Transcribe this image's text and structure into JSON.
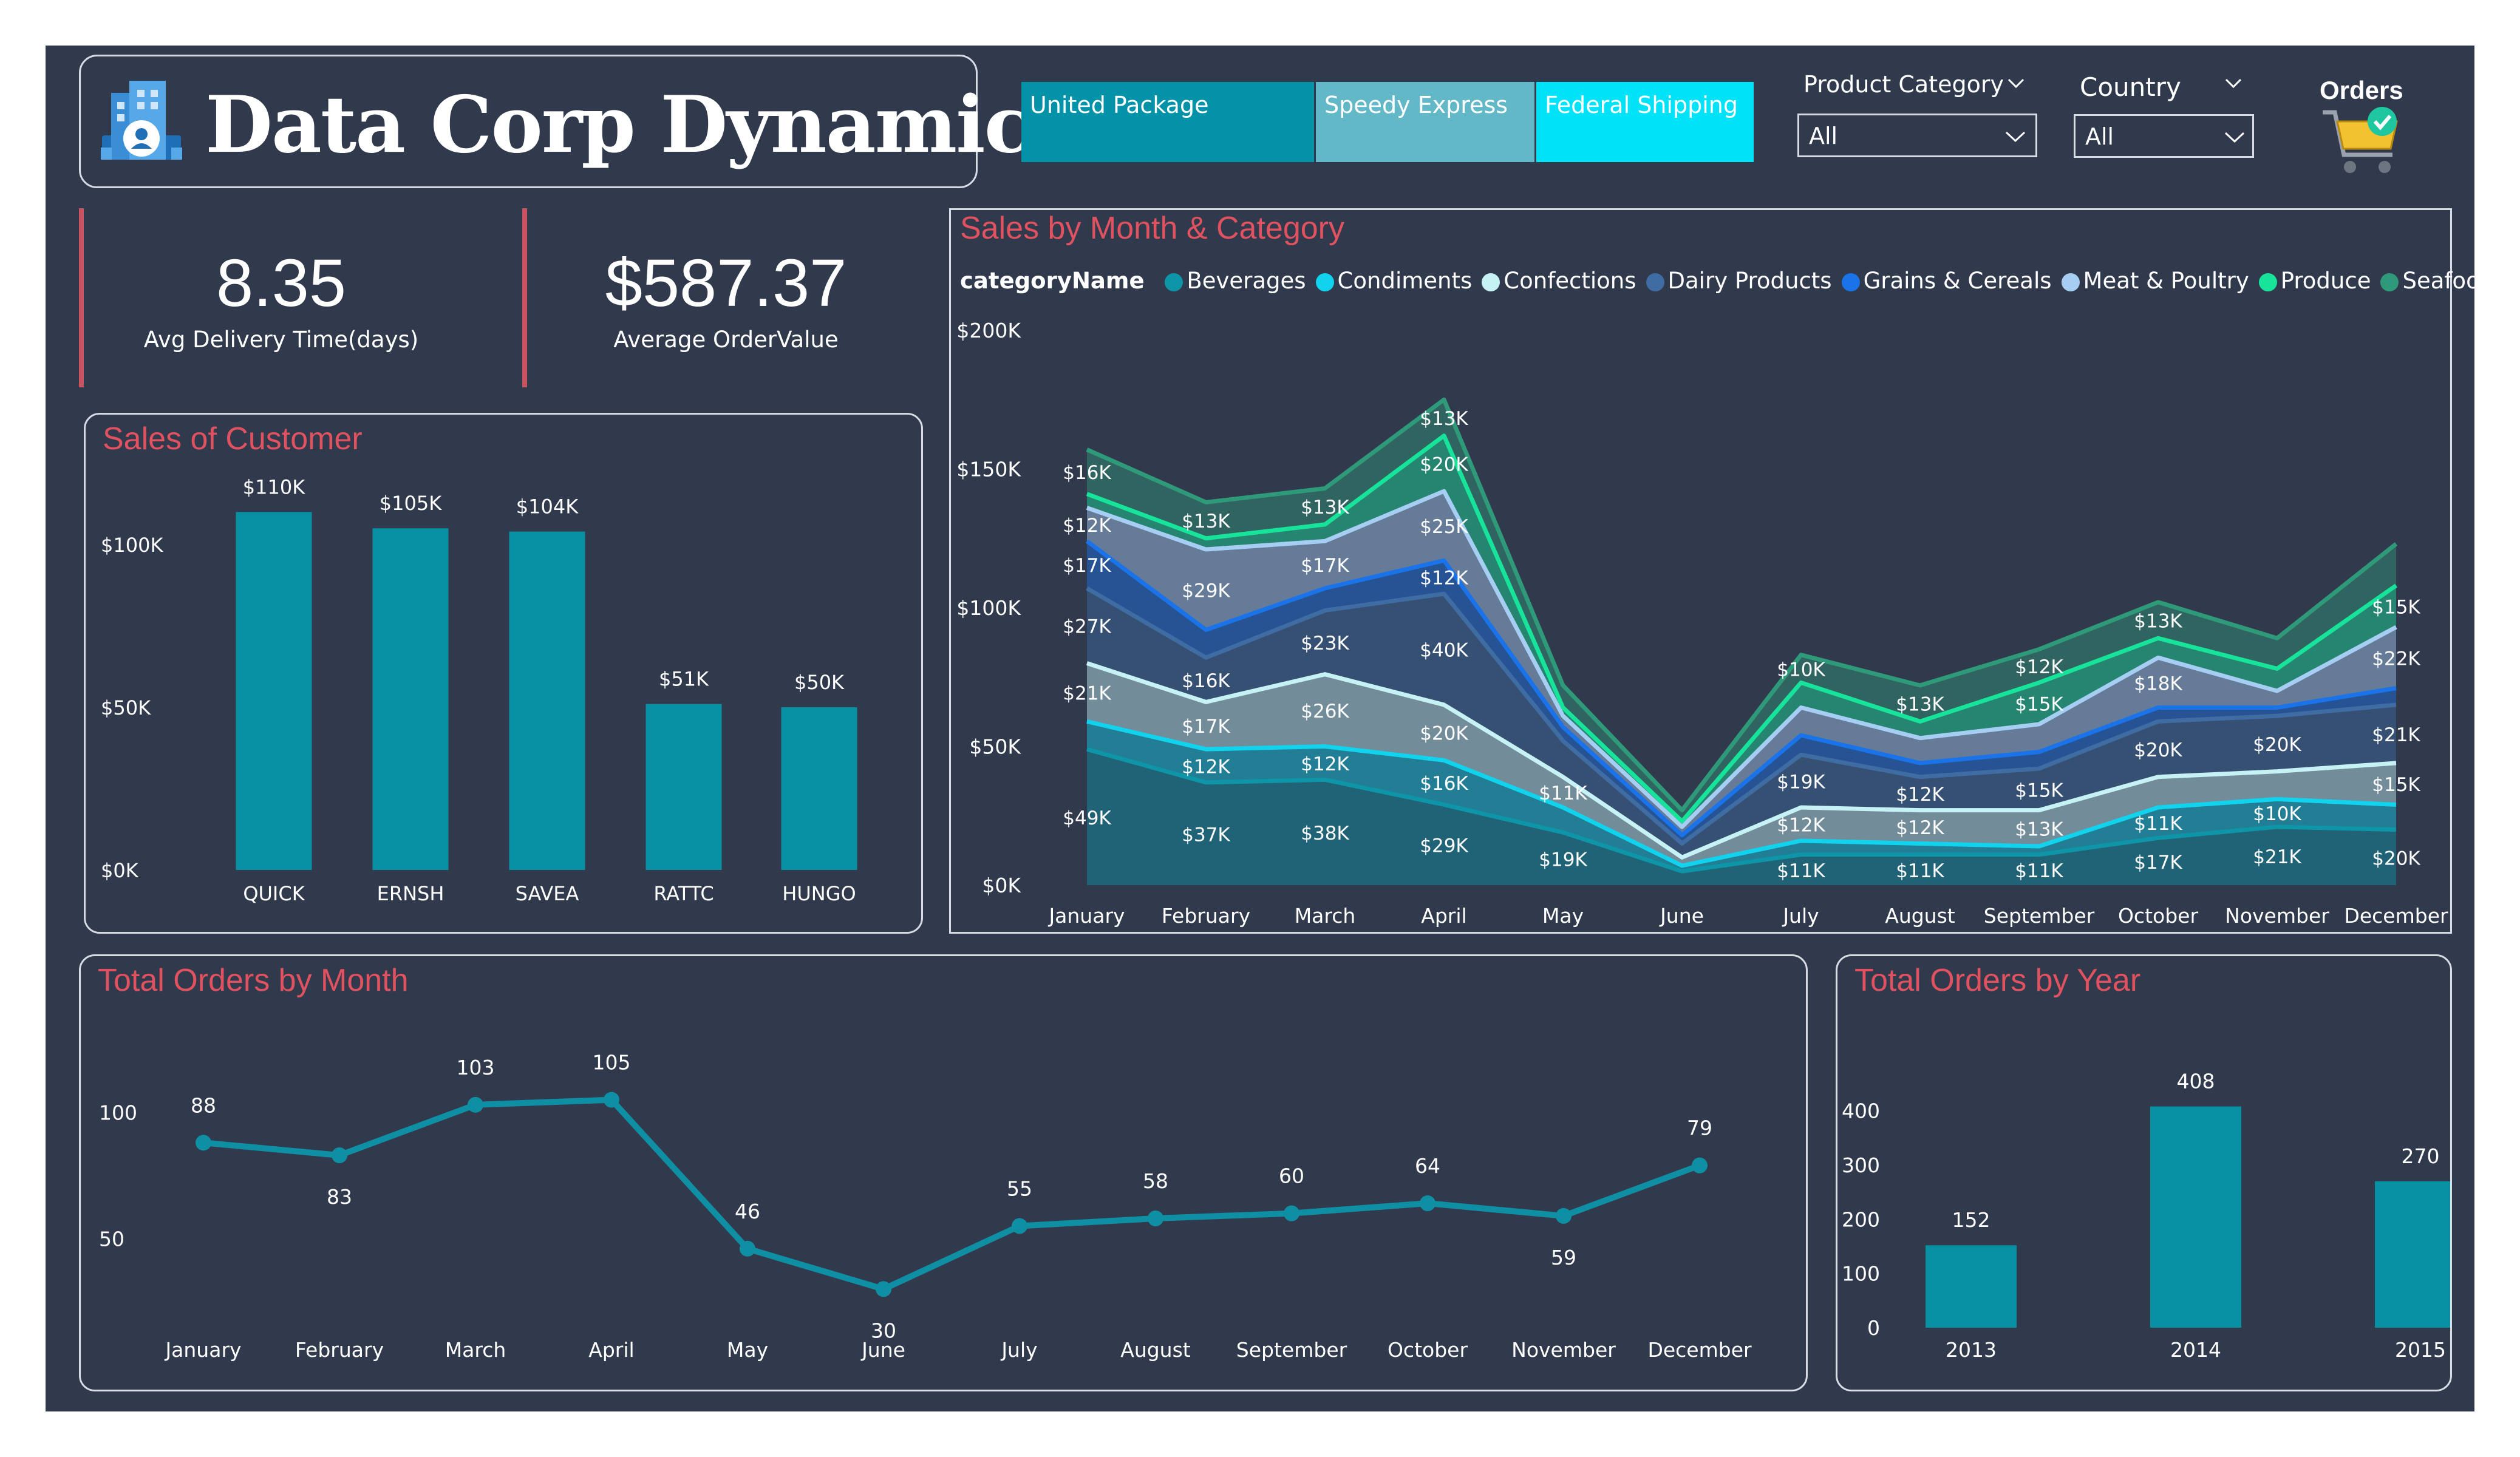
{
  "header": {
    "title": "Data Corp Dynamics",
    "orders_label": "Orders"
  },
  "shippers": [
    {
      "name": "United Package",
      "color": "#0492a8"
    },
    {
      "name": "Speedy Express",
      "color": "#62b8c7"
    },
    {
      "name": "Federal Shipping",
      "color": "#00e2f8"
    }
  ],
  "filters": {
    "product_category": {
      "label": "Product Category",
      "value": "All"
    },
    "country": {
      "label": "Country",
      "value": "All"
    }
  },
  "kpis": [
    {
      "value": "8.35",
      "label": "Avg Delivery Time(days)"
    },
    {
      "value": "$587.37",
      "label": "Average OrderValue"
    }
  ],
  "colors": {
    "bar": "#078fa2",
    "line": "#0f8fa3",
    "title": "#e05260",
    "background": "#313a4d"
  },
  "chart_data": [
    {
      "id": "sales_customer",
      "type": "bar",
      "title": "Sales of Customer",
      "categories": [
        "QUICK",
        "ERNSH",
        "SAVEA",
        "RATTC",
        "HUNGO"
      ],
      "values": [
        110,
        105,
        104,
        51,
        50
      ],
      "data_labels": [
        "$110K",
        "$105K",
        "$104K",
        "$51K",
        "$50K"
      ],
      "ylim": [
        0,
        125
      ],
      "yticks": [
        0,
        50,
        100
      ],
      "ytick_labels": [
        "$0K",
        "$50K",
        "$100K"
      ]
    },
    {
      "id": "sales_month_category",
      "type": "area",
      "stacked": true,
      "title": "Sales by Month & Category",
      "legend_title": "categoryName",
      "categories": [
        "January",
        "February",
        "March",
        "April",
        "May",
        "June",
        "July",
        "August",
        "September",
        "October",
        "November",
        "December"
      ],
      "ylim": [
        0,
        200
      ],
      "yticks": [
        0,
        50,
        100,
        150,
        200
      ],
      "ytick_labels": [
        "$0K",
        "$50K",
        "$100K",
        "$150K",
        "$200K"
      ],
      "series": [
        {
          "name": "Beverages",
          "color": "#0e95a8",
          "values": [
            49,
            37,
            38,
            29,
            19,
            5,
            11,
            11,
            11,
            17,
            21,
            20
          ],
          "labels": [
            "$49K",
            "$37K",
            "$38K",
            "$29K",
            "$19K",
            "",
            "$11K",
            "$11K",
            "$11K",
            "$17K",
            "$21K",
            "$20K"
          ]
        },
        {
          "name": "Condiments",
          "color": "#12d3ee",
          "values": [
            10,
            12,
            12,
            16,
            9,
            2,
            5,
            4,
            3,
            11,
            10,
            9
          ],
          "labels": [
            "",
            "$12K",
            "$12K",
            "$16K",
            "",
            "",
            "",
            "",
            "",
            "$11K",
            "$10K",
            ""
          ]
        },
        {
          "name": "Confections",
          "color": "#c6f2f6",
          "values": [
            21,
            17,
            26,
            20,
            11,
            3,
            12,
            12,
            13,
            11,
            10,
            15
          ],
          "labels": [
            "$21K",
            "$17K",
            "$26K",
            "$20K",
            "$11K",
            "",
            "$12K",
            "$12K",
            "$13K",
            "",
            "",
            "$15K"
          ]
        },
        {
          "name": "Dairy Products",
          "color": "#3e6ca3",
          "values": [
            27,
            16,
            23,
            40,
            13,
            5,
            19,
            12,
            15,
            20,
            20,
            21
          ],
          "labels": [
            "$27K",
            "$16K",
            "$23K",
            "$40K",
            "",
            "",
            "$19K",
            "$12K",
            "$15K",
            "$20K",
            "$20K",
            "$21K"
          ]
        },
        {
          "name": "Grains & Cereals",
          "color": "#1a73e8",
          "values": [
            17,
            10,
            8,
            12,
            5,
            3,
            7,
            5,
            6,
            5,
            3,
            6
          ],
          "labels": [
            "$17K",
            "",
            "",
            "$12K",
            "",
            "",
            "",
            "",
            "",
            "",
            "",
            ""
          ]
        },
        {
          "name": "Meat & Poultry",
          "color": "#a6cdf2",
          "values": [
            12,
            29,
            17,
            25,
            4,
            3,
            10,
            9,
            10,
            18,
            6,
            22
          ],
          "labels": [
            "$12K",
            "$29K",
            "$17K",
            "$25K",
            "",
            "",
            "",
            "",
            "",
            "$18K",
            "",
            "$22K"
          ]
        },
        {
          "name": "Produce",
          "color": "#18e39b",
          "values": [
            5,
            4,
            6,
            20,
            3,
            2,
            9,
            6,
            15,
            7,
            8,
            15
          ],
          "labels": [
            "",
            "",
            "",
            "$20K",
            "",
            "",
            "",
            "",
            "$15K",
            "",
            "",
            "$15K"
          ]
        },
        {
          "name": "Seafood",
          "color": "#2f9a7a",
          "values": [
            16,
            13,
            13,
            13,
            8,
            4,
            10,
            13,
            12,
            13,
            11,
            15
          ],
          "labels": [
            "$16K",
            "$13K",
            "$13K",
            "$13K",
            "",
            "",
            "$10K",
            "$13K",
            "$12K",
            "$13K",
            "",
            ""
          ]
        }
      ]
    },
    {
      "id": "orders_month",
      "type": "line",
      "title": "Total Orders by Month",
      "categories": [
        "January",
        "February",
        "March",
        "April",
        "May",
        "June",
        "July",
        "August",
        "September",
        "October",
        "November",
        "December"
      ],
      "values": [
        88,
        83,
        103,
        105,
        46,
        30,
        55,
        58,
        60,
        64,
        59,
        79
      ],
      "ylim": [
        20,
        115
      ],
      "yticks": [
        50,
        100
      ]
    },
    {
      "id": "orders_year",
      "type": "bar",
      "title": "Total Orders by Year",
      "categories": [
        "2013",
        "2014",
        "2015"
      ],
      "values": [
        152,
        408,
        270
      ],
      "ylim": [
        0,
        450
      ],
      "yticks": [
        0,
        100,
        200,
        300,
        400
      ]
    }
  ]
}
